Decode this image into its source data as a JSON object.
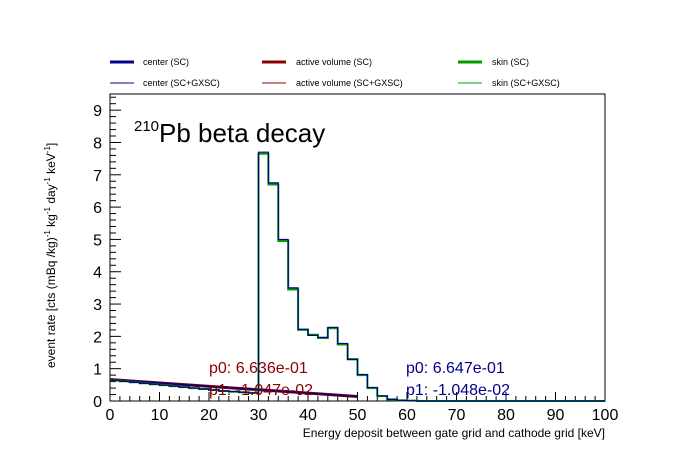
{
  "chart_data": {
    "type": "line",
    "title_mass": "210",
    "title_text": "Pb beta decay",
    "xlabel": "Energy deposit between gate grid and cathode grid [keV]",
    "ylabel_parts": {
      "prefix": "event rate [cts (mBq /kg)",
      "e1": "-1",
      "mid1": " kg",
      "e2": "-1",
      "mid2": " day",
      "e3": "-1",
      "mid3": " keV",
      "e4": "-1",
      "suffix": "]"
    },
    "xlim": [
      0,
      100
    ],
    "ylim": [
      0,
      9.5
    ],
    "x_ticks": [
      "0",
      "10",
      "20",
      "30",
      "40",
      "50",
      "60",
      "70",
      "80",
      "90",
      "100"
    ],
    "y_ticks": [
      "0",
      "1",
      "2",
      "3",
      "4",
      "5",
      "6",
      "7",
      "8",
      "9"
    ],
    "legend": [
      {
        "label": "center (SC)",
        "color": "#00008b",
        "thick": true
      },
      {
        "label": "active volume (SC)",
        "color": "#8b0000",
        "thick": true
      },
      {
        "label": "skin (SC)",
        "color": "#009900",
        "thick": true
      },
      {
        "label": "center (SC+GXSC)",
        "color": "#00008b",
        "thick": false
      },
      {
        "label": "active volume (SC+GXSC)",
        "color": "#8b0000",
        "thick": false
      },
      {
        "label": "skin (SC+GXSC)",
        "color": "#009900",
        "thick": false
      }
    ],
    "bin_width": 2,
    "series": [
      {
        "name": "skin (SC)",
        "color": "#009900",
        "x": [
          0,
          2,
          4,
          6,
          8,
          10,
          12,
          14,
          16,
          18,
          20,
          22,
          24,
          26,
          28,
          30,
          32,
          34,
          36,
          38,
          40,
          42,
          44,
          46,
          48,
          50,
          52,
          54,
          56,
          58,
          60,
          62,
          64
        ],
        "values": [
          0.64,
          0.61,
          0.58,
          0.55,
          0.52,
          0.49,
          0.46,
          0.43,
          0.4,
          0.37,
          0.34,
          0.31,
          0.29,
          0.27,
          0.25,
          7.65,
          6.7,
          4.95,
          3.45,
          2.2,
          2.05,
          1.95,
          2.25,
          1.75,
          1.3,
          0.8,
          0.4,
          0.15,
          0.05,
          0.02,
          0.01,
          0.0,
          0.0
        ]
      },
      {
        "name": "center (SC)",
        "color": "#00008b",
        "x": [
          0,
          2,
          4,
          6,
          8,
          10,
          12,
          14,
          16,
          18,
          20,
          22,
          24,
          26,
          28,
          30,
          32,
          34,
          36,
          38,
          40,
          42,
          44,
          46,
          48,
          50,
          52,
          54,
          56,
          58,
          60,
          62,
          64
        ],
        "values": [
          0.64,
          0.61,
          0.58,
          0.55,
          0.52,
          0.49,
          0.46,
          0.43,
          0.4,
          0.37,
          0.34,
          0.31,
          0.29,
          0.27,
          0.25,
          7.7,
          6.75,
          5.0,
          3.5,
          2.22,
          2.03,
          1.97,
          2.28,
          1.78,
          1.28,
          0.82,
          0.42,
          0.16,
          0.05,
          0.02,
          0.01,
          0.0,
          0.0
        ]
      }
    ],
    "fits": [
      {
        "color": "#8b0000",
        "p0": 0.6636,
        "p1": -0.01047,
        "x0": 0,
        "x1": 50
      },
      {
        "color": "#00008b",
        "p0": 0.6647,
        "p1": -0.01048,
        "x0": 0,
        "x1": 50
      }
    ],
    "fit_labels": [
      {
        "p0": "p0: 6.636e-01",
        "p1": "p1: -1.047e-02",
        "color": "#8b0000"
      },
      {
        "p0": "p0: 6.647e-01",
        "p1": "p1: -1.048e-02",
        "color": "#00008b"
      }
    ]
  }
}
